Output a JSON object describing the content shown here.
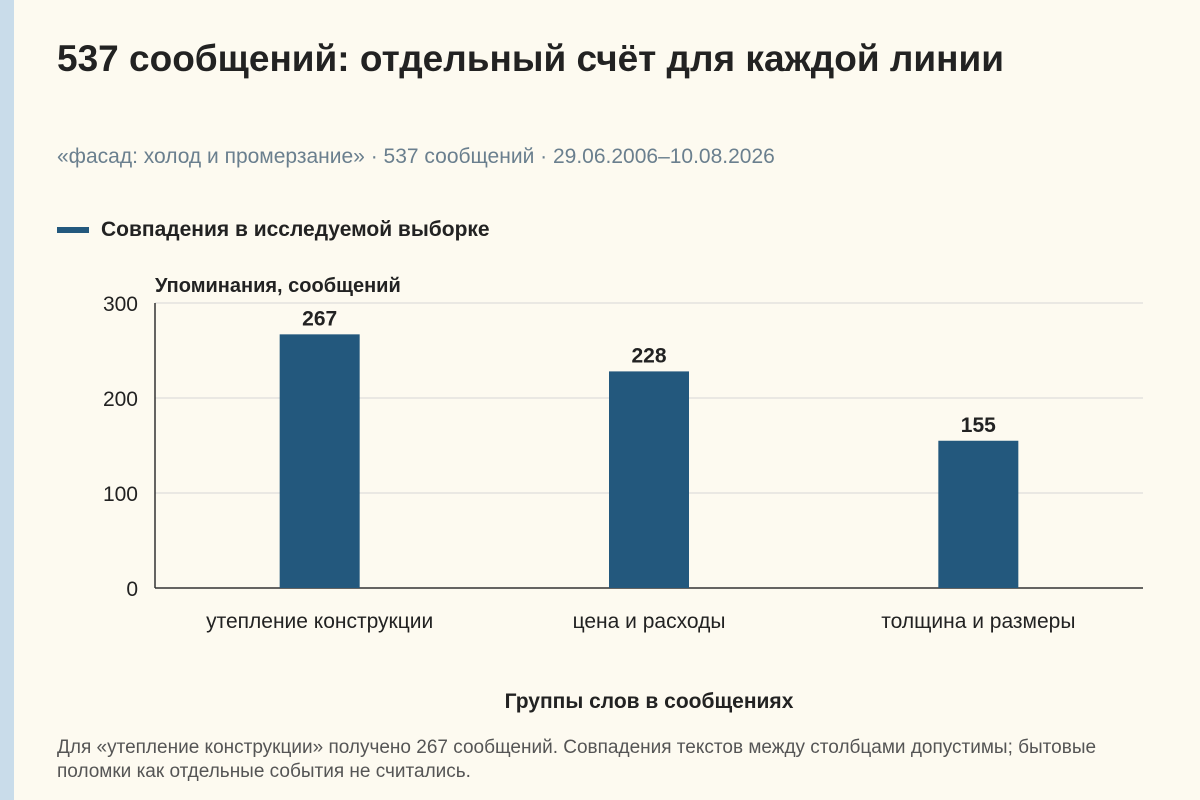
{
  "header": {
    "title": "537 сообщений: отдельный счёт для каждой линии",
    "subtitle": "«фасад: холод и промерзание» · 537 сообщений · 29.06.2006–10.08.2026"
  },
  "colors": {
    "bar": "#23587d",
    "background": "#fdfaf0",
    "grid": "#d6d6d6",
    "axis": "#333333"
  },
  "chart_data": {
    "type": "bar",
    "categories": [
      "утепление конструкции",
      "цена и расходы",
      "толщина и размеры"
    ],
    "series": [
      {
        "name": "Совпадения в исследуемой выборке",
        "values": [
          267,
          228,
          155
        ]
      }
    ],
    "ylabel": "Упоминания, сообщений",
    "xlabel": "Группы слов в сообщениях",
    "ylim": [
      0,
      300
    ],
    "yticks": [
      0,
      100,
      200,
      300
    ],
    "grid": true,
    "legend": "top-left"
  },
  "footnote": "Для «утепление конструкции» получено 267 сообщений. Совпадения текстов между столбцами допустимы; бытовые поломки как отдельные события не считались."
}
